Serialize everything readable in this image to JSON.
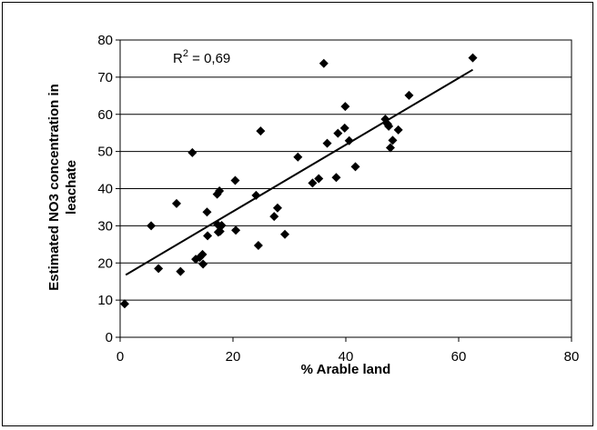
{
  "chart_data": {
    "type": "scatter",
    "title": "",
    "xlabel": "% Arable land",
    "ylabel_lines": [
      "Estimated NO3 concentration in",
      "leachate"
    ],
    "xlim": [
      0,
      80
    ],
    "ylim": [
      0,
      80
    ],
    "x_ticks": [
      "0",
      "20",
      "40",
      "60",
      "80"
    ],
    "y_ticks": [
      "0",
      "10",
      "20",
      "30",
      "40",
      "50",
      "60",
      "70",
      "80"
    ],
    "grid": "horizontal",
    "annotation": {
      "base": "R",
      "sup": "2",
      "rest": " = 0,69"
    },
    "trendline": {
      "x": [
        1,
        62.5
      ],
      "y": [
        16.8,
        72
      ]
    },
    "points": [
      [
        0.8,
        9
      ],
      [
        5.5,
        30
      ],
      [
        6.8,
        18.5
      ],
      [
        10,
        36
      ],
      [
        10.7,
        17.7
      ],
      [
        12.8,
        49.7
      ],
      [
        13.4,
        21
      ],
      [
        14.1,
        21.5
      ],
      [
        14.6,
        22.3
      ],
      [
        14.7,
        19.7
      ],
      [
        15.4,
        33.7
      ],
      [
        15.5,
        27.3
      ],
      [
        17.2,
        38.5
      ],
      [
        17.3,
        30.3
      ],
      [
        17.4,
        28.3
      ],
      [
        17.6,
        39.4
      ],
      [
        17.7,
        28.5
      ],
      [
        18,
        30.1
      ],
      [
        20.4,
        42.2
      ],
      [
        20.5,
        28.8
      ],
      [
        24.1,
        38.2
      ],
      [
        24.5,
        24.7
      ],
      [
        24.9,
        55.5
      ],
      [
        27.3,
        32.5
      ],
      [
        27.9,
        34.8
      ],
      [
        29.2,
        27.7
      ],
      [
        31.5,
        48.5
      ],
      [
        34.1,
        41.5
      ],
      [
        35.2,
        42.7
      ],
      [
        36.1,
        73.7
      ],
      [
        36.7,
        52.2
      ],
      [
        38.3,
        43
      ],
      [
        38.6,
        54.9
      ],
      [
        39.9,
        62.1
      ],
      [
        39.8,
        56.3
      ],
      [
        40.6,
        52.9
      ],
      [
        41.7,
        45.9
      ],
      [
        47,
        58.7
      ],
      [
        47.4,
        57.4
      ],
      [
        47.6,
        56.8
      ],
      [
        47.9,
        51
      ],
      [
        48.3,
        53
      ],
      [
        49.3,
        55.8
      ],
      [
        51.2,
        65.1
      ],
      [
        62.5,
        75.2
      ]
    ]
  }
}
